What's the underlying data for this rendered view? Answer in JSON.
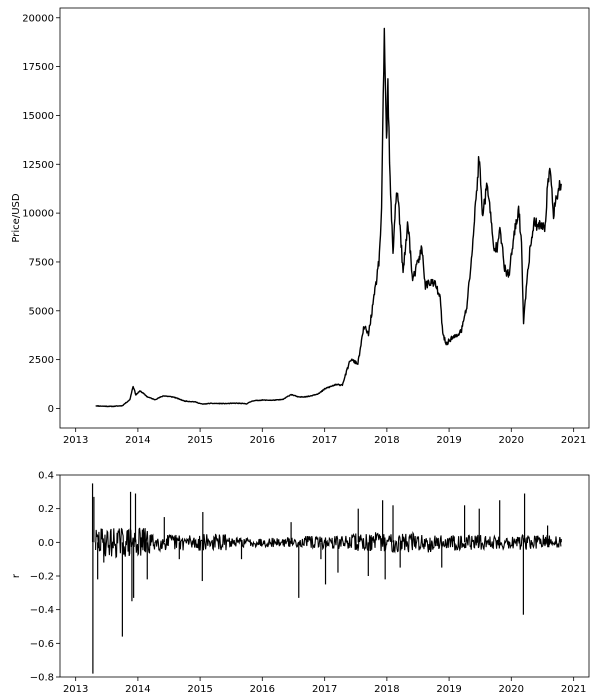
{
  "chart_data": [
    {
      "type": "line",
      "title": "",
      "xlabel": "",
      "ylabel": "Price/USD",
      "x_axis": "date",
      "xlim": [
        "2012-10-01",
        "2021-04-01"
      ],
      "ylim": [
        -1000,
        20500
      ],
      "xticks": [
        "2013",
        "2014",
        "2015",
        "2016",
        "2017",
        "2018",
        "2019",
        "2020",
        "2021"
      ],
      "yticks": [
        "0",
        "2500",
        "5000",
        "7500",
        "10000",
        "12500",
        "15000",
        "17500",
        "20000"
      ],
      "grid": false,
      "legend": "none",
      "line_color": "#000000",
      "series": [
        {
          "x": [
            "2013-04-28",
            "2013-06-01",
            "2013-08-01",
            "2013-10-01",
            "2013-11-15",
            "2013-12-04",
            "2013-12-20",
            "2014-01-15",
            "2014-02-25",
            "2014-04-10",
            "2014-06-01",
            "2014-08-01",
            "2014-10-01",
            "2014-12-01",
            "2015-01-15",
            "2015-03-01",
            "2015-06-01",
            "2015-08-01",
            "2015-10-01",
            "2015-11-05",
            "2016-01-01",
            "2016-03-01",
            "2016-05-01",
            "2016-06-18",
            "2016-08-01",
            "2016-10-01",
            "2016-12-01",
            "2017-01-05",
            "2017-03-01",
            "2017-04-15",
            "2017-06-01",
            "2017-07-15",
            "2017-08-20",
            "2017-09-15",
            "2017-10-20",
            "2017-11-15",
            "2017-12-01",
            "2017-12-17",
            "2017-12-30",
            "2018-01-07",
            "2018-01-20",
            "2018-02-06",
            "2018-02-20",
            "2018-03-05",
            "2018-04-06",
            "2018-05-05",
            "2018-06-01",
            "2018-07-25",
            "2018-08-15",
            "2018-09-15",
            "2018-10-15",
            "2018-11-10",
            "2018-11-25",
            "2018-12-15",
            "2019-01-15",
            "2019-02-15",
            "2019-03-15",
            "2019-04-15",
            "2019-05-15",
            "2019-06-26",
            "2019-07-15",
            "2019-08-15",
            "2019-09-20",
            "2019-10-10",
            "2019-10-26",
            "2019-11-20",
            "2019-12-18",
            "2020-01-15",
            "2020-02-13",
            "2020-03-01",
            "2020-03-13",
            "2020-04-01",
            "2020-04-30",
            "2020-05-15",
            "2020-06-15",
            "2020-07-15",
            "2020-08-01",
            "2020-08-20",
            "2020-09-05",
            "2020-09-25",
            "2020-10-10",
            "2020-10-20"
          ],
          "y": [
            135,
            120,
            105,
            140,
            450,
            1150,
            700,
            900,
            600,
            450,
            650,
            580,
            380,
            340,
            220,
            260,
            250,
            270,
            240,
            390,
            430,
            420,
            460,
            720,
            580,
            620,
            780,
            1020,
            1200,
            1220,
            2500,
            2300,
            4200,
            3800,
            5800,
            7500,
            10000,
            19400,
            13500,
            16500,
            11500,
            8000,
            10400,
            11200,
            6900,
            9600,
            6500,
            8200,
            6300,
            6500,
            6300,
            5600,
            3800,
            3300,
            3600,
            3700,
            4000,
            5200,
            7900,
            12900,
            10000,
            11500,
            8100,
            8300,
            9500,
            7200,
            6800,
            8700,
            10200,
            8500,
            4300,
            6600,
            8900,
            9500,
            9400,
            9200,
            11300,
            12200,
            10000,
            10800,
            11400,
            11500
          ]
        }
      ]
    },
    {
      "type": "line",
      "title": "",
      "xlabel": "",
      "ylabel": "r",
      "x_axis": "date",
      "xlim": [
        "2012-10-01",
        "2021-04-01"
      ],
      "ylim": [
        -0.8,
        0.4
      ],
      "xticks": [
        "2013",
        "2014",
        "2015",
        "2016",
        "2017",
        "2018",
        "2019",
        "2020",
        "2021"
      ],
      "yticks": [
        "0.4",
        "0.2",
        "0.0",
        "−0.2",
        "−0.4",
        "−0.6",
        "−0.8"
      ],
      "grid": false,
      "legend": "none",
      "line_color": "#000000",
      "series": [
        {
          "x": [
            "2013-04-28",
            "2013-04-10",
            "2013-04-12",
            "2013-04-18",
            "2013-05-10",
            "2013-06-15",
            "2013-10-02",
            "2013-11-19",
            "2013-11-27",
            "2013-12-07",
            "2013-12-18",
            "2014-02-25",
            "2014-06-05",
            "2014-09-01",
            "2015-01-14",
            "2015-01-17",
            "2015-09-01",
            "2016-06-18",
            "2016-08-02",
            "2016-12-10",
            "2017-01-06",
            "2017-03-20",
            "2017-07-17",
            "2017-09-14",
            "2017-12-07",
            "2017-12-22",
            "2018-02-06",
            "2018-03-20",
            "2018-11-19",
            "2019-04-02",
            "2019-06-27",
            "2019-10-25",
            "2020-03-12",
            "2020-03-19",
            "2020-08-01",
            "2020-10-20"
          ],
          "y": [
            0.0,
            0.35,
            -0.78,
            0.27,
            -0.22,
            -0.12,
            -0.56,
            0.3,
            -0.35,
            -0.33,
            0.29,
            -0.22,
            0.15,
            -0.1,
            -0.23,
            0.18,
            -0.1,
            0.12,
            -0.33,
            -0.1,
            -0.25,
            -0.18,
            0.2,
            -0.2,
            0.25,
            -0.22,
            0.22,
            -0.15,
            -0.15,
            0.22,
            0.2,
            0.25,
            -0.43,
            0.29,
            0.1,
            0.02
          ]
        }
      ]
    }
  ]
}
